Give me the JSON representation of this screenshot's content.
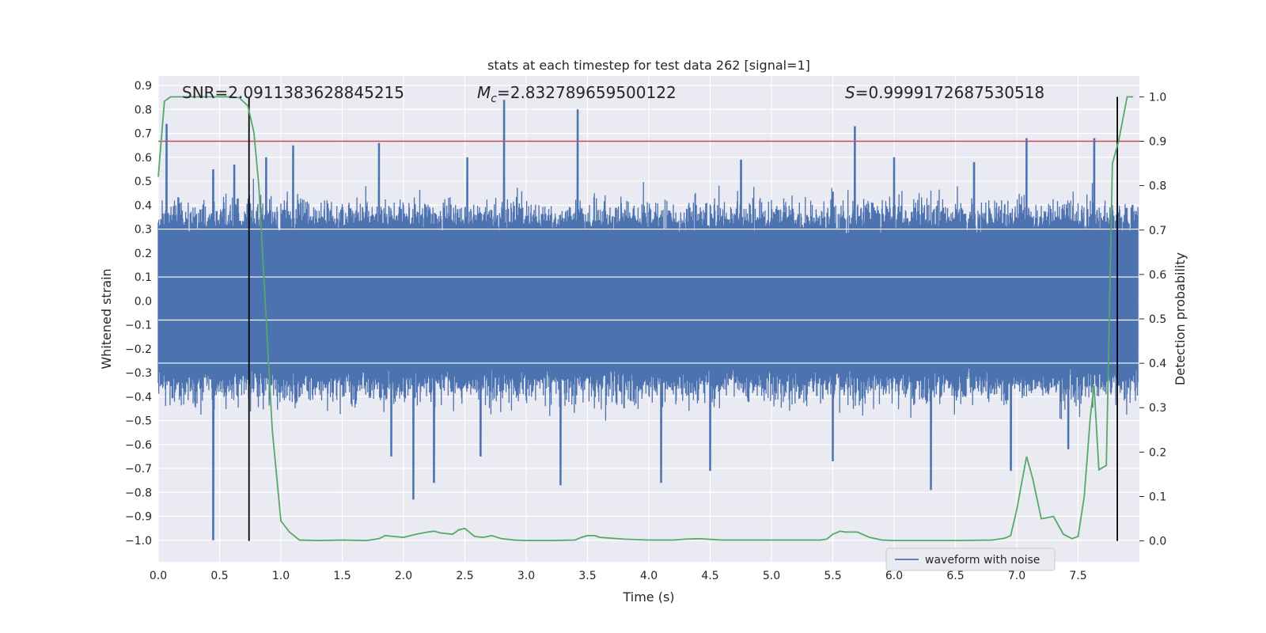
{
  "chart_data": {
    "type": "line",
    "title": "stats at each timestep for test data 262 [signal=1]",
    "xlabel": "Time (s)",
    "ylabel": "Whitened strain",
    "y2label": "Detection probability",
    "xlim": [
      0.0,
      8.0
    ],
    "ylim": [
      -1.09,
      0.94
    ],
    "y2lim": [
      -0.047,
      1.047
    ],
    "grid": true,
    "x_ticks": [
      "0.0",
      "0.5",
      "1.0",
      "1.5",
      "2.0",
      "2.5",
      "3.0",
      "3.5",
      "4.0",
      "4.5",
      "5.0",
      "5.5",
      "6.0",
      "6.5",
      "7.0",
      "7.5"
    ],
    "y_ticks": [
      "0.9",
      "0.8",
      "0.7",
      "0.6",
      "0.5",
      "0.4",
      "0.3",
      "0.2",
      "0.1",
      "0.0",
      "−0.1",
      "−0.2",
      "−0.3",
      "−0.4",
      "−0.5",
      "−0.6",
      "−0.7",
      "−0.8",
      "−0.9",
      "−1.0"
    ],
    "y2_ticks": [
      "1.0",
      "0.9",
      "0.8",
      "0.7",
      "0.6",
      "0.5",
      "0.4",
      "0.3",
      "0.2",
      "0.1",
      "0.0"
    ],
    "annotations": {
      "snr": "SNR=2.0911383628845215",
      "mc_symbol": "M",
      "mc_sub": "c",
      "mc_value": "=2.832789659500122",
      "s_symbol": "S",
      "s_value": "=0.9999172687530518"
    },
    "legend": {
      "label": "waveform with noise",
      "placement": "lower-right"
    },
    "threshold_line": {
      "y2": 0.9,
      "color": "#c44e52"
    },
    "vertical_markers": [
      0.74,
      7.82
    ],
    "waveform": {
      "name": "waveform with noise",
      "color": "#4c72b0",
      "sample_step": 0.004,
      "core_amplitude": 0.3,
      "upper_peaks": [
        [
          0.07,
          0.74
        ],
        [
          0.45,
          0.55
        ],
        [
          0.62,
          0.57
        ],
        [
          0.88,
          0.6
        ],
        [
          1.1,
          0.65
        ],
        [
          1.8,
          0.66
        ],
        [
          2.52,
          0.6
        ],
        [
          2.82,
          0.84
        ],
        [
          3.42,
          0.8
        ],
        [
          4.75,
          0.59
        ],
        [
          5.68,
          0.73
        ],
        [
          6.0,
          0.6
        ],
        [
          6.65,
          0.58
        ],
        [
          7.08,
          0.68
        ],
        [
          7.63,
          0.68
        ]
      ],
      "lower_peaks": [
        [
          0.45,
          -1.0
        ],
        [
          1.9,
          -0.65
        ],
        [
          2.08,
          -0.83
        ],
        [
          2.25,
          -0.76
        ],
        [
          2.63,
          -0.65
        ],
        [
          3.28,
          -0.77
        ],
        [
          4.1,
          -0.76
        ],
        [
          4.5,
          -0.71
        ],
        [
          5.5,
          -0.67
        ],
        [
          6.3,
          -0.79
        ],
        [
          6.95,
          -0.71
        ],
        [
          7.42,
          -0.62
        ]
      ]
    },
    "series": [
      {
        "name": "detection probability",
        "color": "#55a868",
        "x": [
          0.0,
          0.05,
          0.1,
          0.2,
          0.3,
          0.4,
          0.5,
          0.6,
          0.66,
          0.73,
          0.78,
          0.82,
          0.86,
          0.93,
          1.0,
          1.07,
          1.15,
          1.3,
          1.5,
          1.7,
          1.8,
          1.85,
          1.92,
          2.0,
          2.1,
          2.2,
          2.25,
          2.3,
          2.4,
          2.45,
          2.5,
          2.58,
          2.65,
          2.72,
          2.8,
          2.9,
          3.0,
          3.2,
          3.4,
          3.45,
          3.5,
          3.56,
          3.6,
          3.7,
          3.8,
          4.0,
          4.2,
          4.3,
          4.4,
          4.6,
          4.8,
          5.0,
          5.2,
          5.4,
          5.45,
          5.5,
          5.56,
          5.6,
          5.7,
          5.8,
          5.9,
          6.0,
          6.2,
          6.5,
          6.8,
          6.9,
          6.95,
          7.0,
          7.08,
          7.13,
          7.2,
          7.3,
          7.38,
          7.45,
          7.5,
          7.55,
          7.6,
          7.63,
          7.67,
          7.73,
          7.78,
          7.83,
          7.9,
          7.95
        ],
        "y": [
          0.82,
          0.99,
          1.0,
          1.0,
          1.0,
          1.0,
          1.0,
          1.0,
          0.998,
          0.98,
          0.92,
          0.8,
          0.6,
          0.25,
          0.045,
          0.02,
          0.002,
          0.001,
          0.002,
          0.001,
          0.005,
          0.012,
          0.01,
          0.008,
          0.015,
          0.02,
          0.022,
          0.018,
          0.015,
          0.025,
          0.028,
          0.01,
          0.008,
          0.012,
          0.005,
          0.002,
          0.001,
          0.001,
          0.002,
          0.008,
          0.012,
          0.012,
          0.008,
          0.006,
          0.004,
          0.002,
          0.002,
          0.004,
          0.005,
          0.002,
          0.002,
          0.002,
          0.002,
          0.002,
          0.004,
          0.015,
          0.022,
          0.02,
          0.02,
          0.008,
          0.002,
          0.001,
          0.001,
          0.001,
          0.002,
          0.006,
          0.012,
          0.07,
          0.19,
          0.14,
          0.05,
          0.055,
          0.015,
          0.005,
          0.01,
          0.1,
          0.28,
          0.35,
          0.16,
          0.17,
          0.85,
          0.9,
          1.0,
          1.0
        ]
      }
    ]
  }
}
